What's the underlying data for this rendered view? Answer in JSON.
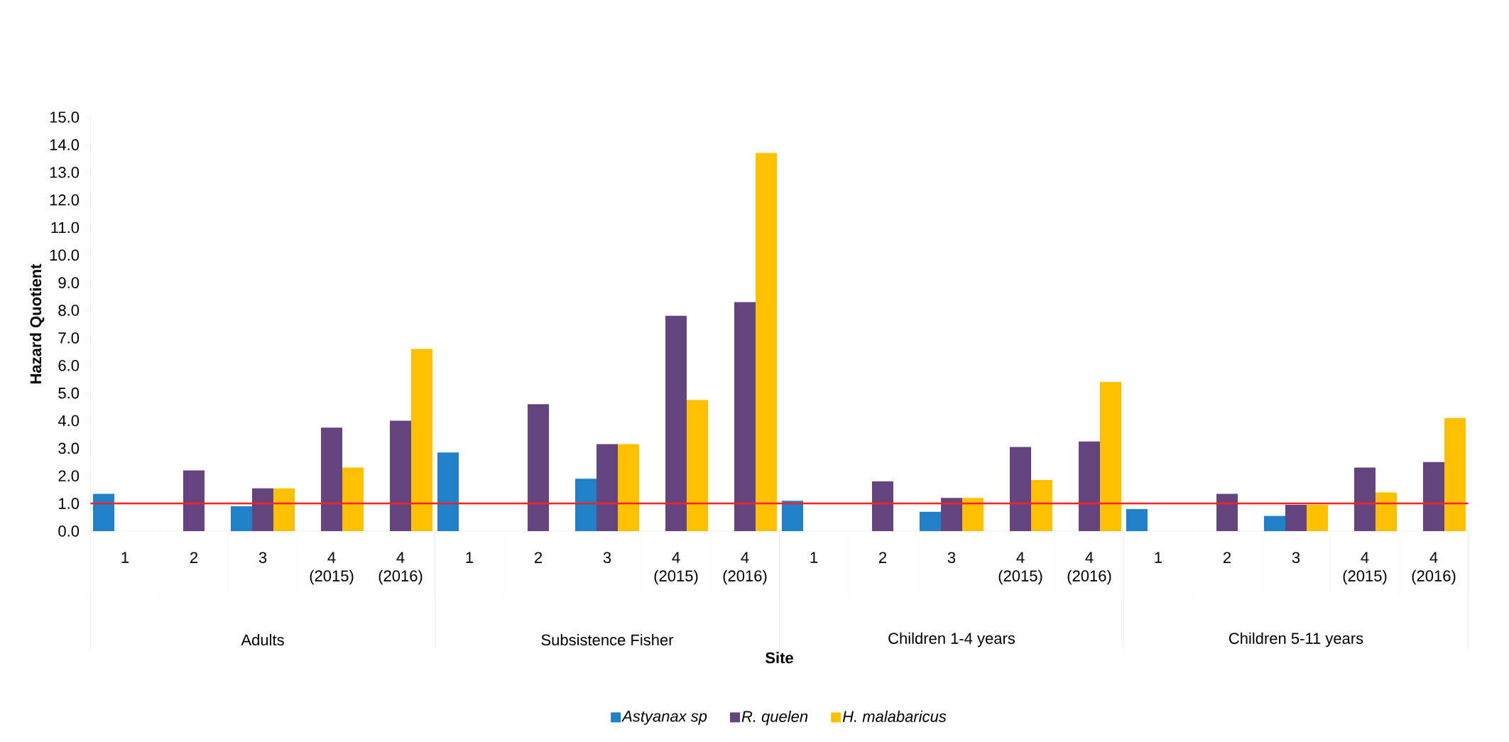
{
  "chart_data": {
    "type": "bar",
    "xlabel": "Site",
    "ylabel": "Hazard Quotient",
    "categories": [
      "1",
      "2",
      "3",
      "4 (2015)",
      "4 (2016)",
      "1",
      "2",
      "3",
      "4 (2015)",
      "4 (2016)",
      "1",
      "2",
      "3",
      "4 (2015)",
      "4 (2016)",
      "1",
      "2",
      "3",
      "4 (2015)",
      "4 (2016)"
    ],
    "annotations": [
      "Adults",
      "Subsistence Fisher",
      "Children 1-4 years",
      "Children 5-11 years"
    ],
    "series": [
      {
        "name": "Astyanax sp",
        "color": "#2080c8",
        "values": [
          1.35,
          null,
          0.9,
          null,
          null,
          2.85,
          null,
          1.9,
          null,
          null,
          1.1,
          null,
          0.7,
          null,
          null,
          0.8,
          null,
          0.55,
          null,
          null
        ]
      },
      {
        "name": "R. quelen",
        "color": "#64437e",
        "values": [
          null,
          2.2,
          1.55,
          3.75,
          4.0,
          null,
          4.6,
          3.15,
          7.8,
          8.3,
          null,
          1.8,
          1.2,
          3.05,
          3.25,
          null,
          1.35,
          0.95,
          2.3,
          2.5
        ]
      },
      {
        "name": "H. malabaricus",
        "color": "#ffc000",
        "values": [
          null,
          null,
          1.55,
          2.3,
          6.6,
          null,
          null,
          3.15,
          4.75,
          13.7,
          null,
          null,
          1.2,
          1.85,
          5.4,
          null,
          null,
          0.95,
          1.4,
          4.1
        ]
      }
    ],
    "ylim": [
      0,
      15
    ],
    "yticks": [
      {
        "value": 0,
        "label": "0.0"
      },
      {
        "value": 1,
        "label": "1.0"
      },
      {
        "value": 2,
        "label": "2.0"
      },
      {
        "value": 3,
        "label": "3.0"
      },
      {
        "value": 4,
        "label": "4.0"
      },
      {
        "value": 5,
        "label": "5.0"
      },
      {
        "value": 6,
        "label": "6.0"
      },
      {
        "value": 7,
        "label": "7.0"
      },
      {
        "value": 8,
        "label": "8.0"
      },
      {
        "value": 9,
        "label": "9.0"
      },
      {
        "value": 10,
        "label": "10.0"
      },
      {
        "value": 11,
        "label": "11.0"
      },
      {
        "value": 12,
        "label": "12.0"
      },
      {
        "value": 13,
        "label": "13.0"
      },
      {
        "value": 14,
        "label": "14.0"
      },
      {
        "value": 15,
        "label": "15.0"
      }
    ],
    "ref_lines": [
      {
        "axis": "y",
        "value": 1,
        "color": "#ff2020"
      }
    ],
    "legend": "bottom",
    "grid": false
  }
}
